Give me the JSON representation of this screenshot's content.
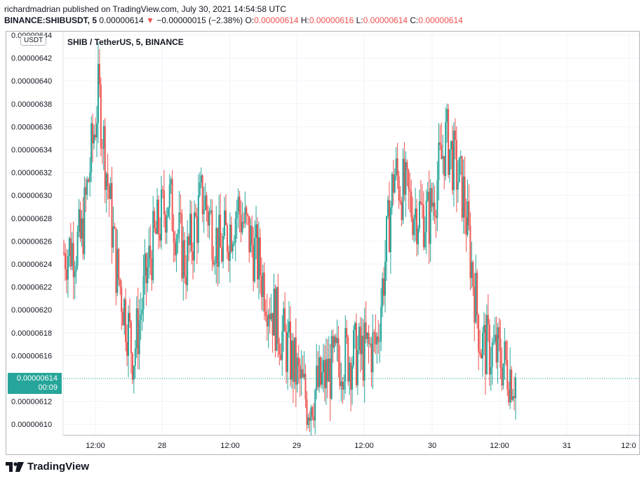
{
  "header": {
    "publisher_line": "richardmadrian published on TradingView.com, July 30, 2021 14:54:58 UTC",
    "symbol": "BINANCE:SHIBUSDT, 5",
    "last": "0.00000614",
    "change_arrow": "▼",
    "change": "−0.00000015 (−2.38%)",
    "o_label": "O:",
    "o": "0.00000614",
    "h_label": "H:",
    "h": "0.00000616",
    "l_label": "L:",
    "l": "0.00000614",
    "c_label": "C:",
    "c": "0.00000614"
  },
  "legend": {
    "title": "SHIB / TetherUS, 5, BINANCE"
  },
  "unit": "USDT",
  "price_tag": {
    "price": "0.00000614",
    "countdown": "00:09"
  },
  "footer": {
    "brand": "TradingView",
    "icon": "tradingview-logo-icon"
  },
  "colors": {
    "up": "#26a69a",
    "down": "#ef5350",
    "grid": "#f0f3fa"
  },
  "chart_data": {
    "type": "candlestick",
    "y_ticks": [
      "0.00000642",
      "0.00000640",
      "0.00000638",
      "0.00000636",
      "0.00000634",
      "0.00000632",
      "0.00000630",
      "0.00000628",
      "0.00000626",
      "0.00000624",
      "0.00000622",
      "0.00000620",
      "0.00000618",
      "0.00000616",
      "0.00000614",
      "0.00000612",
      "0.00000610"
    ],
    "y_top_label": "0.00000644",
    "x_ticks": [
      "12:00",
      "28",
      "12:00",
      "29",
      "12:00",
      "30",
      "12:00",
      "31",
      "12:0"
    ],
    "ylim": [
      6.09e-06,
      6.44e-06
    ],
    "current_price": 6.14e-06,
    "series_close_approx": [
      {
        "t": "27 00:00",
        "v": 6.25e-06
      },
      {
        "t": "27 06:00",
        "v": 6.26e-06
      },
      {
        "t": "27 12:00",
        "v": 6.39e-06
      },
      {
        "t": "27 15:00",
        "v": 6.24e-06
      },
      {
        "t": "27 18:00",
        "v": 6.16e-06
      },
      {
        "t": "27 21:00",
        "v": 6.25e-06
      },
      {
        "t": "28 00:00",
        "v": 6.3e-06
      },
      {
        "t": "28 03:00",
        "v": 6.24e-06
      },
      {
        "t": "28 06:00",
        "v": 6.3e-06
      },
      {
        "t": "28 09:00",
        "v": 6.25e-06
      },
      {
        "t": "28 12:00",
        "v": 6.29e-06
      },
      {
        "t": "28 15:00",
        "v": 6.25e-06
      },
      {
        "t": "28 18:00",
        "v": 6.2e-06
      },
      {
        "t": "28 21:00",
        "v": 6.16e-06
      },
      {
        "t": "29 00:00",
        "v": 6.12e-06
      },
      {
        "t": "29 03:00",
        "v": 6.14e-06
      },
      {
        "t": "29 06:00",
        "v": 6.16e-06
      },
      {
        "t": "29 09:00",
        "v": 6.16e-06
      },
      {
        "t": "29 12:00",
        "v": 6.17e-06
      },
      {
        "t": "29 15:00",
        "v": 6.32e-06
      },
      {
        "t": "29 18:00",
        "v": 6.29e-06
      },
      {
        "t": "29 21:00",
        "v": 6.28e-06
      },
      {
        "t": "30 00:00",
        "v": 6.35e-06
      },
      {
        "t": "30 03:00",
        "v": 6.3e-06
      },
      {
        "t": "30 06:00",
        "v": 6.17e-06
      },
      {
        "t": "30 09:00",
        "v": 6.16e-06
      },
      {
        "t": "30 12:00",
        "v": 6.14e-06
      }
    ]
  }
}
